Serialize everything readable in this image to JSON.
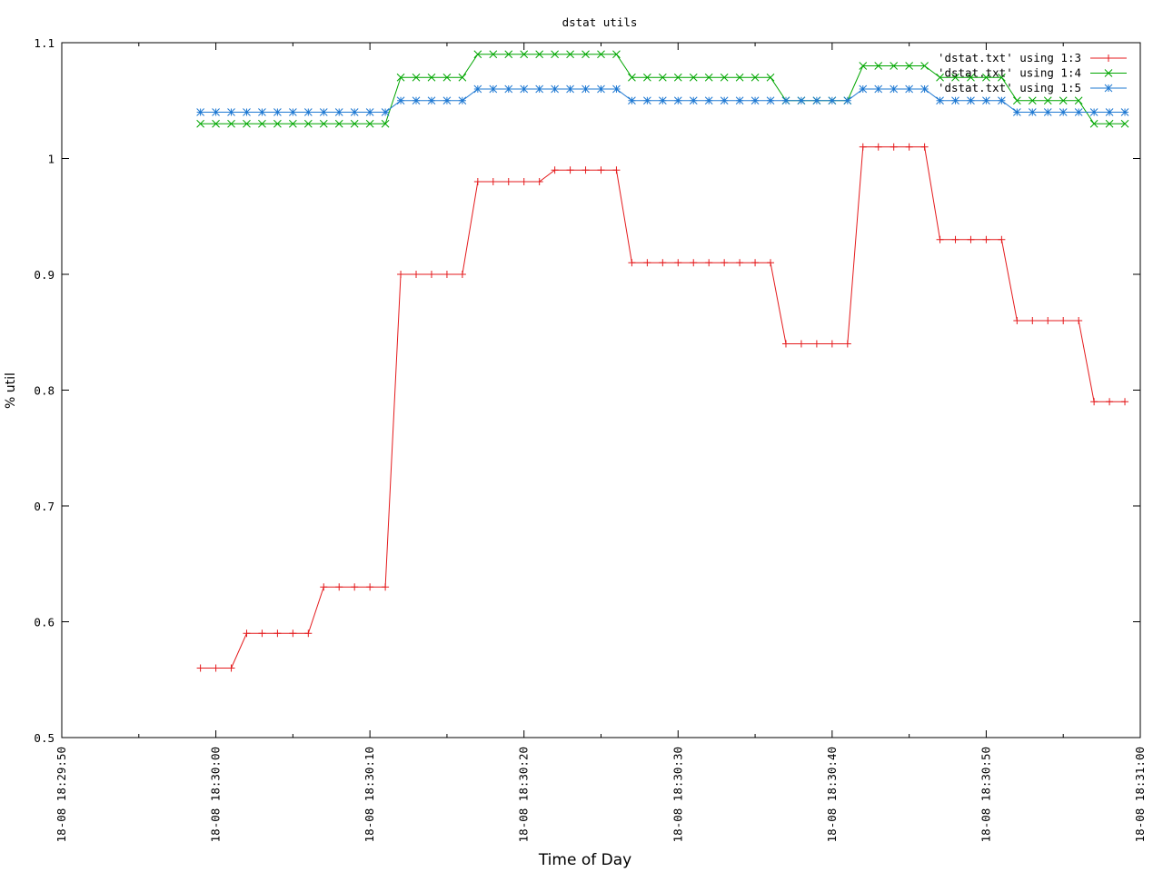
{
  "chart_data": {
    "type": "line",
    "title": "dstat utils",
    "xlabel": "Time of Day",
    "ylabel": "% util",
    "ylim": [
      0.5,
      1.1
    ],
    "xlim": [
      "18-08 18:29:50",
      "18-08 18:31:00"
    ],
    "yticks": [
      0.5,
      0.6,
      0.7,
      0.8,
      0.9,
      1,
      1.1
    ],
    "ytick_labels": [
      "0.5",
      "0.6",
      "0.7",
      "0.8",
      "0.9",
      "1",
      "1.1"
    ],
    "xticks": [
      "18-08 18:29:50",
      "18-08 18:30:00",
      "18-08 18:30:10",
      "18-08 18:30:20",
      "18-08 18:30:30",
      "18-08 18:30:40",
      "18-08 18:30:50",
      "18-08 18:31:00"
    ],
    "xtick_labels": [
      "18-08  18:29:50",
      "18-08  18:30:00",
      "18-08  18:30:10",
      "18-08  18:30:20",
      "18-08  18:30:30",
      "18-08  18:30:40",
      "18-08  18:30:50",
      "18-08  18:31:00"
    ],
    "grid": false,
    "legend_position": "top-right",
    "x": [
      "18:29:59",
      "18:30:00",
      "18:30:01",
      "18:30:02",
      "18:30:03",
      "18:30:04",
      "18:30:05",
      "18:30:06",
      "18:30:07",
      "18:30:08",
      "18:30:09",
      "18:30:10",
      "18:30:11",
      "18:30:12",
      "18:30:13",
      "18:30:14",
      "18:30:15",
      "18:30:16",
      "18:30:17",
      "18:30:18",
      "18:30:19",
      "18:30:20",
      "18:30:21",
      "18:30:22",
      "18:30:23",
      "18:30:24",
      "18:30:25",
      "18:30:26",
      "18:30:27",
      "18:30:28",
      "18:30:29",
      "18:30:30",
      "18:30:31",
      "18:30:32",
      "18:30:33",
      "18:30:34",
      "18:30:35",
      "18:30:36",
      "18:30:37",
      "18:30:38",
      "18:30:39",
      "18:30:40",
      "18:30:41",
      "18:30:42",
      "18:30:43",
      "18:30:44",
      "18:30:45",
      "18:30:46",
      "18:30:47",
      "18:30:48",
      "18:30:49",
      "18:30:50",
      "18:30:51",
      "18:30:52",
      "18:30:53",
      "18:30:54",
      "18:30:55",
      "18:30:56",
      "18:30:57",
      "18:30:58",
      "18:30:59"
    ],
    "series": [
      {
        "name": "'dstat.txt' using 1:3",
        "color": "#e41a1c",
        "marker": "plus",
        "values": [
          0.56,
          0.56,
          0.56,
          0.59,
          0.59,
          0.59,
          0.59,
          0.59,
          0.63,
          0.63,
          0.63,
          0.63,
          0.63,
          0.9,
          0.9,
          0.9,
          0.9,
          0.9,
          0.98,
          0.98,
          0.98,
          0.98,
          0.98,
          0.99,
          0.99,
          0.99,
          0.99,
          0.99,
          0.91,
          0.91,
          0.91,
          0.91,
          0.91,
          0.91,
          0.91,
          0.91,
          0.91,
          0.91,
          0.84,
          0.84,
          0.84,
          0.84,
          0.84,
          1.01,
          1.01,
          1.01,
          1.01,
          1.01,
          0.93,
          0.93,
          0.93,
          0.93,
          0.93,
          0.86,
          0.86,
          0.86,
          0.86,
          0.86,
          0.79,
          0.79,
          0.79
        ]
      },
      {
        "name": "'dstat.txt' using 1:4",
        "color": "#00a600",
        "marker": "cross",
        "values": [
          1.03,
          1.03,
          1.03,
          1.03,
          1.03,
          1.03,
          1.03,
          1.03,
          1.03,
          1.03,
          1.03,
          1.03,
          1.03,
          1.07,
          1.07,
          1.07,
          1.07,
          1.07,
          1.09,
          1.09,
          1.09,
          1.09,
          1.09,
          1.09,
          1.09,
          1.09,
          1.09,
          1.09,
          1.07,
          1.07,
          1.07,
          1.07,
          1.07,
          1.07,
          1.07,
          1.07,
          1.07,
          1.07,
          1.05,
          1.05,
          1.05,
          1.05,
          1.05,
          1.08,
          1.08,
          1.08,
          1.08,
          1.08,
          1.07,
          1.07,
          1.07,
          1.07,
          1.07,
          1.05,
          1.05,
          1.05,
          1.05,
          1.05,
          1.03,
          1.03,
          1.03
        ]
      },
      {
        "name": "'dstat.txt' using 1:5",
        "color": "#1e78d2",
        "marker": "star",
        "values": [
          1.04,
          1.04,
          1.04,
          1.04,
          1.04,
          1.04,
          1.04,
          1.04,
          1.04,
          1.04,
          1.04,
          1.04,
          1.04,
          1.05,
          1.05,
          1.05,
          1.05,
          1.05,
          1.06,
          1.06,
          1.06,
          1.06,
          1.06,
          1.06,
          1.06,
          1.06,
          1.06,
          1.06,
          1.05,
          1.05,
          1.05,
          1.05,
          1.05,
          1.05,
          1.05,
          1.05,
          1.05,
          1.05,
          1.05,
          1.05,
          1.05,
          1.05,
          1.05,
          1.06,
          1.06,
          1.06,
          1.06,
          1.06,
          1.05,
          1.05,
          1.05,
          1.05,
          1.05,
          1.04,
          1.04,
          1.04,
          1.04,
          1.04,
          1.04,
          1.04,
          1.04
        ]
      }
    ]
  }
}
